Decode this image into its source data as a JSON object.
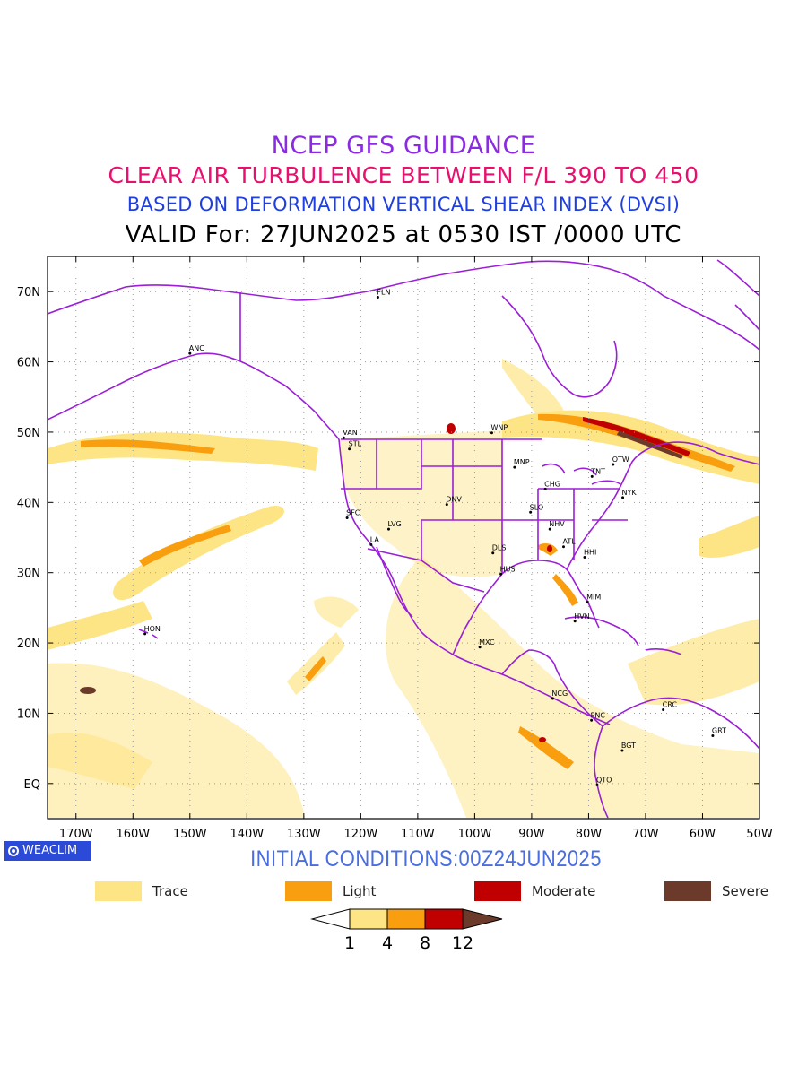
{
  "titles": {
    "line1": "NCEP GFS GUIDANCE",
    "line2": "CLEAR AIR TURBULENCE BETWEEN F/L 390 TO 450",
    "line3": "BASED ON DEFORMATION VERTICAL SHEAR INDEX (DVSI)",
    "line4": "VALID For: 27JUN2025 at 0530 IST /0000 UTC"
  },
  "map": {
    "lon_range": [
      -175,
      -50
    ],
    "lat_range": [
      -5,
      75
    ],
    "lat_ticks": [
      {
        "value": 70,
        "label": "70N"
      },
      {
        "value": 60,
        "label": "60N"
      },
      {
        "value": 50,
        "label": "50N"
      },
      {
        "value": 40,
        "label": "40N"
      },
      {
        "value": 30,
        "label": "30N"
      },
      {
        "value": 20,
        "label": "20N"
      },
      {
        "value": 10,
        "label": "10N"
      },
      {
        "value": 0,
        "label": "EQ"
      }
    ],
    "lon_ticks": [
      {
        "value": -170,
        "label": "170W"
      },
      {
        "value": -160,
        "label": "160W"
      },
      {
        "value": -150,
        "label": "150W"
      },
      {
        "value": -140,
        "label": "140W"
      },
      {
        "value": -130,
        "label": "130W"
      },
      {
        "value": -120,
        "label": "120W"
      },
      {
        "value": -110,
        "label": "110W"
      },
      {
        "value": -100,
        "label": "100W"
      },
      {
        "value": -90,
        "label": "90W"
      },
      {
        "value": -80,
        "label": "80W"
      },
      {
        "value": -70,
        "label": "70W"
      },
      {
        "value": -60,
        "label": "60W"
      },
      {
        "value": -50,
        "label": "50W"
      }
    ],
    "stations": [
      {
        "code": "FLN",
        "lon": -117,
        "lat": 69.2
      },
      {
        "code": "ANC",
        "lon": -150,
        "lat": 61.2
      },
      {
        "code": "VAN",
        "lon": -123,
        "lat": 49.2
      },
      {
        "code": "STL",
        "lon": -122,
        "lat": 47.6
      },
      {
        "code": "WNP",
        "lon": -97,
        "lat": 49.9
      },
      {
        "code": "MNP",
        "lon": -93,
        "lat": 45.0
      },
      {
        "code": "OTW",
        "lon": -75.7,
        "lat": 45.4
      },
      {
        "code": "TNT",
        "lon": -79.4,
        "lat": 43.7
      },
      {
        "code": "CHG",
        "lon": -87.6,
        "lat": 41.9
      },
      {
        "code": "NYK",
        "lon": -74,
        "lat": 40.7
      },
      {
        "code": "DNV",
        "lon": -104.9,
        "lat": 39.7
      },
      {
        "code": "SFC",
        "lon": -122.4,
        "lat": 37.8
      },
      {
        "code": "LVG",
        "lon": -115.1,
        "lat": 36.2
      },
      {
        "code": "LA",
        "lon": -118.2,
        "lat": 34.0
      },
      {
        "code": "SLO",
        "lon": -90.2,
        "lat": 38.6
      },
      {
        "code": "NHV",
        "lon": -86.8,
        "lat": 36.2
      },
      {
        "code": "ATL",
        "lon": -84.4,
        "lat": 33.7
      },
      {
        "code": "DLS",
        "lon": -96.8,
        "lat": 32.8
      },
      {
        "code": "HHI",
        "lon": -80.7,
        "lat": 32.2
      },
      {
        "code": "HUS",
        "lon": -95.4,
        "lat": 29.8
      },
      {
        "code": "MIM",
        "lon": -80.2,
        "lat": 25.8
      },
      {
        "code": "HVN",
        "lon": -82.4,
        "lat": 23.1
      },
      {
        "code": "HON",
        "lon": -157.9,
        "lat": 21.3
      },
      {
        "code": "MXC",
        "lon": -99.1,
        "lat": 19.4
      },
      {
        "code": "NCG",
        "lon": -86.3,
        "lat": 12.1
      },
      {
        "code": "CRC",
        "lon": -66.9,
        "lat": 10.5
      },
      {
        "code": "PNC",
        "lon": -79.5,
        "lat": 9.0
      },
      {
        "code": "GRT",
        "lon": -58.2,
        "lat": 6.8
      },
      {
        "code": "BGT",
        "lon": -74.1,
        "lat": 4.7
      },
      {
        "code": "QTO",
        "lon": -78.5,
        "lat": -0.2
      }
    ]
  },
  "branding": {
    "badge": "WEACLIM"
  },
  "initial_conditions": "INITIAL CONDITIONS:00Z24JUN2025",
  "legend": [
    {
      "label": "Trace",
      "color": "#fde586"
    },
    {
      "label": "Light",
      "color": "#f99f0f"
    },
    {
      "label": "Moderate",
      "color": "#c00000"
    },
    {
      "label": "Severe",
      "color": "#6b3a2a"
    }
  ],
  "colorbar": {
    "labels": [
      "1",
      "4",
      "8",
      "12"
    ],
    "colors": [
      "#ffffff",
      "#fde586",
      "#f99f0f",
      "#c00000",
      "#6b3a2a"
    ]
  }
}
